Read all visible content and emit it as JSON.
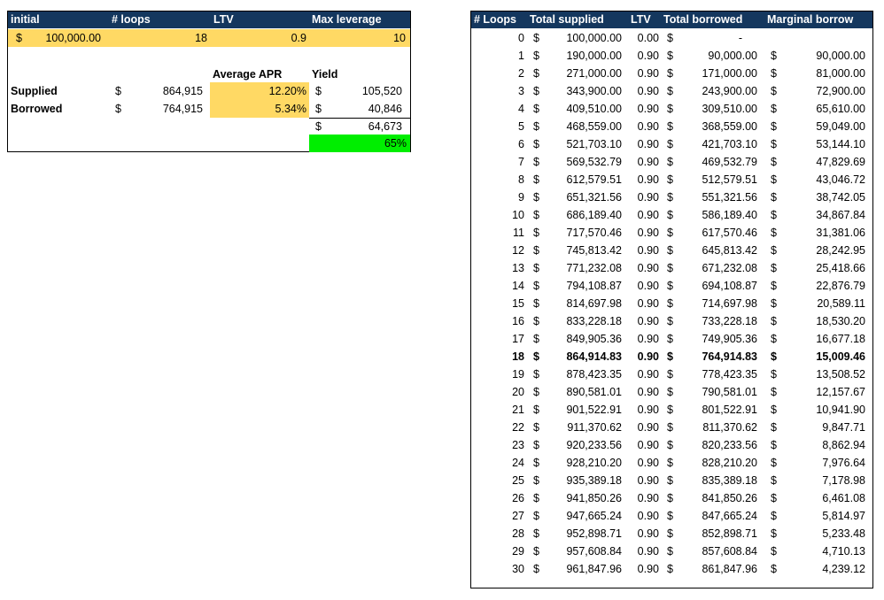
{
  "left": {
    "headers": [
      "initial",
      "# loops",
      "LTV",
      "Max leverage"
    ],
    "inputs": {
      "dollar": "$",
      "initial": "100,000.00",
      "loops": "18",
      "ltv": "0.9",
      "max_leverage": "10"
    },
    "summary_headers": {
      "avg_apr": "Average APR",
      "yield": "Yield"
    },
    "supplied": {
      "label": "Supplied",
      "dollar": "$",
      "amount": "864,915",
      "apr": "12.20%",
      "yield_dollar": "$",
      "yield": "105,520"
    },
    "borrowed": {
      "label": "Borrowed",
      "dollar": "$",
      "amount": "764,915",
      "apr": "5.34%",
      "yield_dollar": "$",
      "yield": "40,846"
    },
    "net": {
      "dollar": "$",
      "value": "64,673"
    },
    "net_pct": "65%"
  },
  "table": {
    "headers": [
      "# Loops",
      "Total supplied",
      "LTV",
      "Total borrowed",
      "Marginal borrow"
    ],
    "highlight_row": 18,
    "rows": [
      [
        "0",
        "100,000.00",
        "0.00",
        "-",
        ""
      ],
      [
        "1",
        "190,000.00",
        "0.90",
        "90,000.00",
        "90,000.00"
      ],
      [
        "2",
        "271,000.00",
        "0.90",
        "171,000.00",
        "81,000.00"
      ],
      [
        "3",
        "343,900.00",
        "0.90",
        "243,900.00",
        "72,900.00"
      ],
      [
        "4",
        "409,510.00",
        "0.90",
        "309,510.00",
        "65,610.00"
      ],
      [
        "5",
        "468,559.00",
        "0.90",
        "368,559.00",
        "59,049.00"
      ],
      [
        "6",
        "521,703.10",
        "0.90",
        "421,703.10",
        "53,144.10"
      ],
      [
        "7",
        "569,532.79",
        "0.90",
        "469,532.79",
        "47,829.69"
      ],
      [
        "8",
        "612,579.51",
        "0.90",
        "512,579.51",
        "43,046.72"
      ],
      [
        "9",
        "651,321.56",
        "0.90",
        "551,321.56",
        "38,742.05"
      ],
      [
        "10",
        "686,189.40",
        "0.90",
        "586,189.40",
        "34,867.84"
      ],
      [
        "11",
        "717,570.46",
        "0.90",
        "617,570.46",
        "31,381.06"
      ],
      [
        "12",
        "745,813.42",
        "0.90",
        "645,813.42",
        "28,242.95"
      ],
      [
        "13",
        "771,232.08",
        "0.90",
        "671,232.08",
        "25,418.66"
      ],
      [
        "14",
        "794,108.87",
        "0.90",
        "694,108.87",
        "22,876.79"
      ],
      [
        "15",
        "814,697.98",
        "0.90",
        "714,697.98",
        "20,589.11"
      ],
      [
        "16",
        "833,228.18",
        "0.90",
        "733,228.18",
        "18,530.20"
      ],
      [
        "17",
        "849,905.36",
        "0.90",
        "749,905.36",
        "16,677.18"
      ],
      [
        "18",
        "864,914.83",
        "0.90",
        "764,914.83",
        "15,009.46"
      ],
      [
        "19",
        "878,423.35",
        "0.90",
        "778,423.35",
        "13,508.52"
      ],
      [
        "20",
        "890,581.01",
        "0.90",
        "790,581.01",
        "12,157.67"
      ],
      [
        "21",
        "901,522.91",
        "0.90",
        "801,522.91",
        "10,941.90"
      ],
      [
        "22",
        "911,370.62",
        "0.90",
        "811,370.62",
        "9,847.71"
      ],
      [
        "23",
        "920,233.56",
        "0.90",
        "820,233.56",
        "8,862.94"
      ],
      [
        "24",
        "928,210.20",
        "0.90",
        "828,210.20",
        "7,976.64"
      ],
      [
        "25",
        "935,389.18",
        "0.90",
        "835,389.18",
        "7,178.98"
      ],
      [
        "26",
        "941,850.26",
        "0.90",
        "841,850.26",
        "6,461.08"
      ],
      [
        "27",
        "947,665.24",
        "0.90",
        "847,665.24",
        "5,814.97"
      ],
      [
        "28",
        "952,898.71",
        "0.90",
        "852,898.71",
        "5,233.48"
      ],
      [
        "29",
        "957,608.84",
        "0.90",
        "857,608.84",
        "4,710.13"
      ],
      [
        "30",
        "961,847.96",
        "0.90",
        "861,847.96",
        "4,239.12"
      ]
    ]
  }
}
